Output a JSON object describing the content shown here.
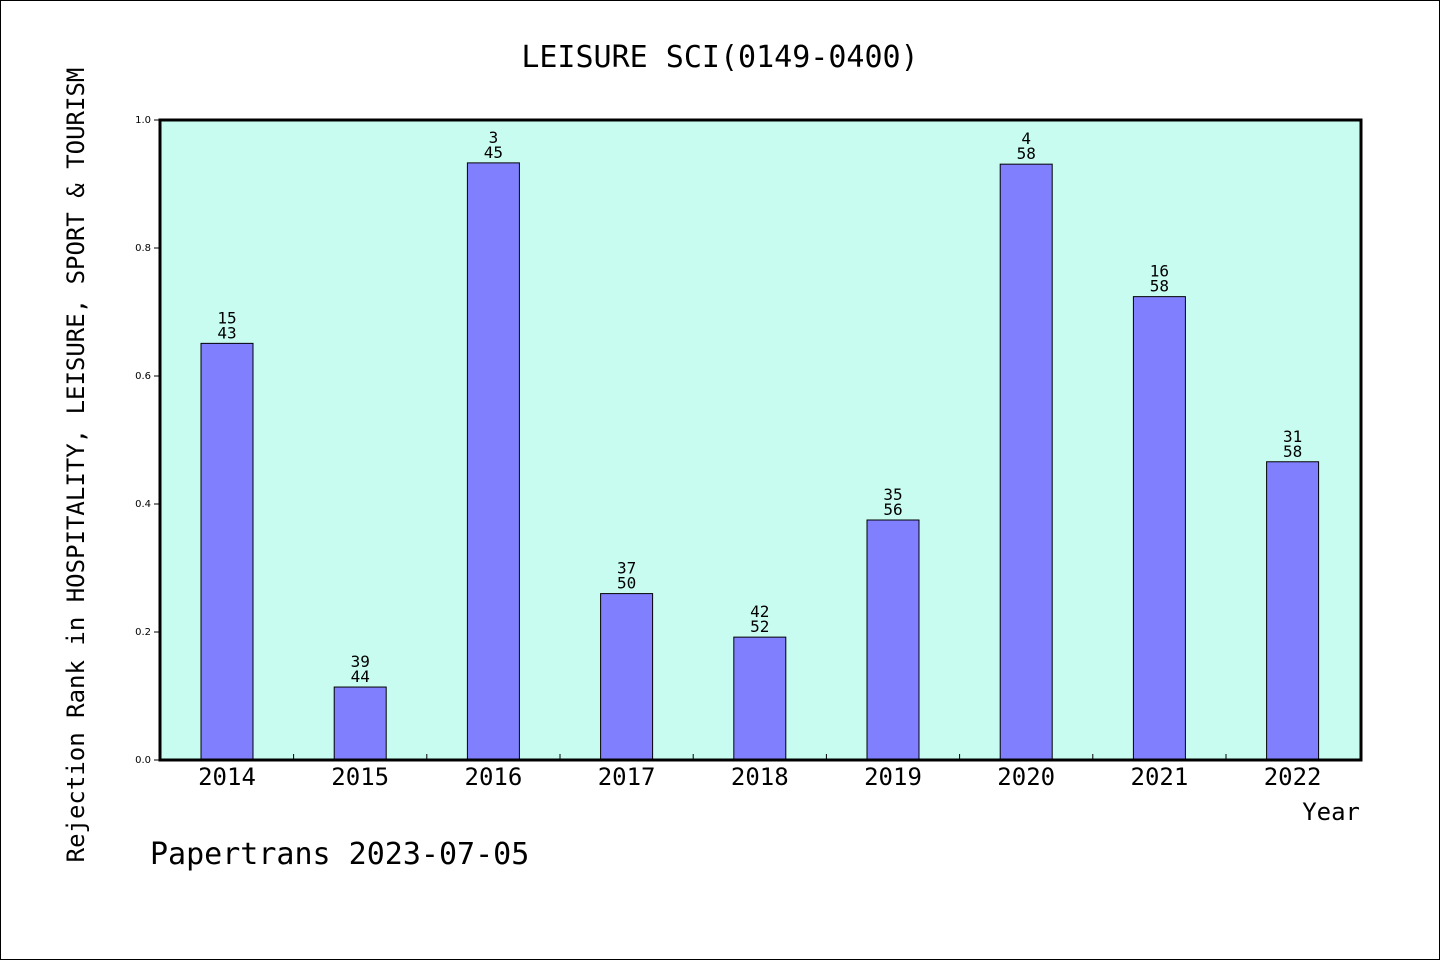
{
  "chart_data": {
    "type": "bar",
    "title": "LEISURE SCI(0149-0400)",
    "xlabel": "Year",
    "ylabel": "Rejection Rank in HOSPITALITY, LEISURE, SPORT & TOURISM",
    "ylim": [
      0,
      1
    ],
    "yticks": [
      "0.0",
      "0.2",
      "0.4",
      "0.6",
      "0.8",
      "1.0"
    ],
    "categories": [
      "2014",
      "2015",
      "2016",
      "2017",
      "2018",
      "2019",
      "2020",
      "2021",
      "2022"
    ],
    "values": [
      0.651,
      0.114,
      0.933,
      0.26,
      0.192,
      0.375,
      0.931,
      0.724,
      0.466
    ],
    "bar_labels": [
      {
        "rank": "15",
        "total": "43"
      },
      {
        "rank": "39",
        "total": "44"
      },
      {
        "rank": "3",
        "total": "45"
      },
      {
        "rank": "37",
        "total": "50"
      },
      {
        "rank": "42",
        "total": "52"
      },
      {
        "rank": "35",
        "total": "56"
      },
      {
        "rank": "4",
        "total": "58"
      },
      {
        "rank": "16",
        "total": "58"
      },
      {
        "rank": "31",
        "total": "58"
      }
    ],
    "grid": false,
    "colors": {
      "plot_background": "#c8fcf0",
      "bar_fill": "#8080ff",
      "bar_stroke": "#000000"
    }
  },
  "footer": "Papertrans 2023-07-05"
}
